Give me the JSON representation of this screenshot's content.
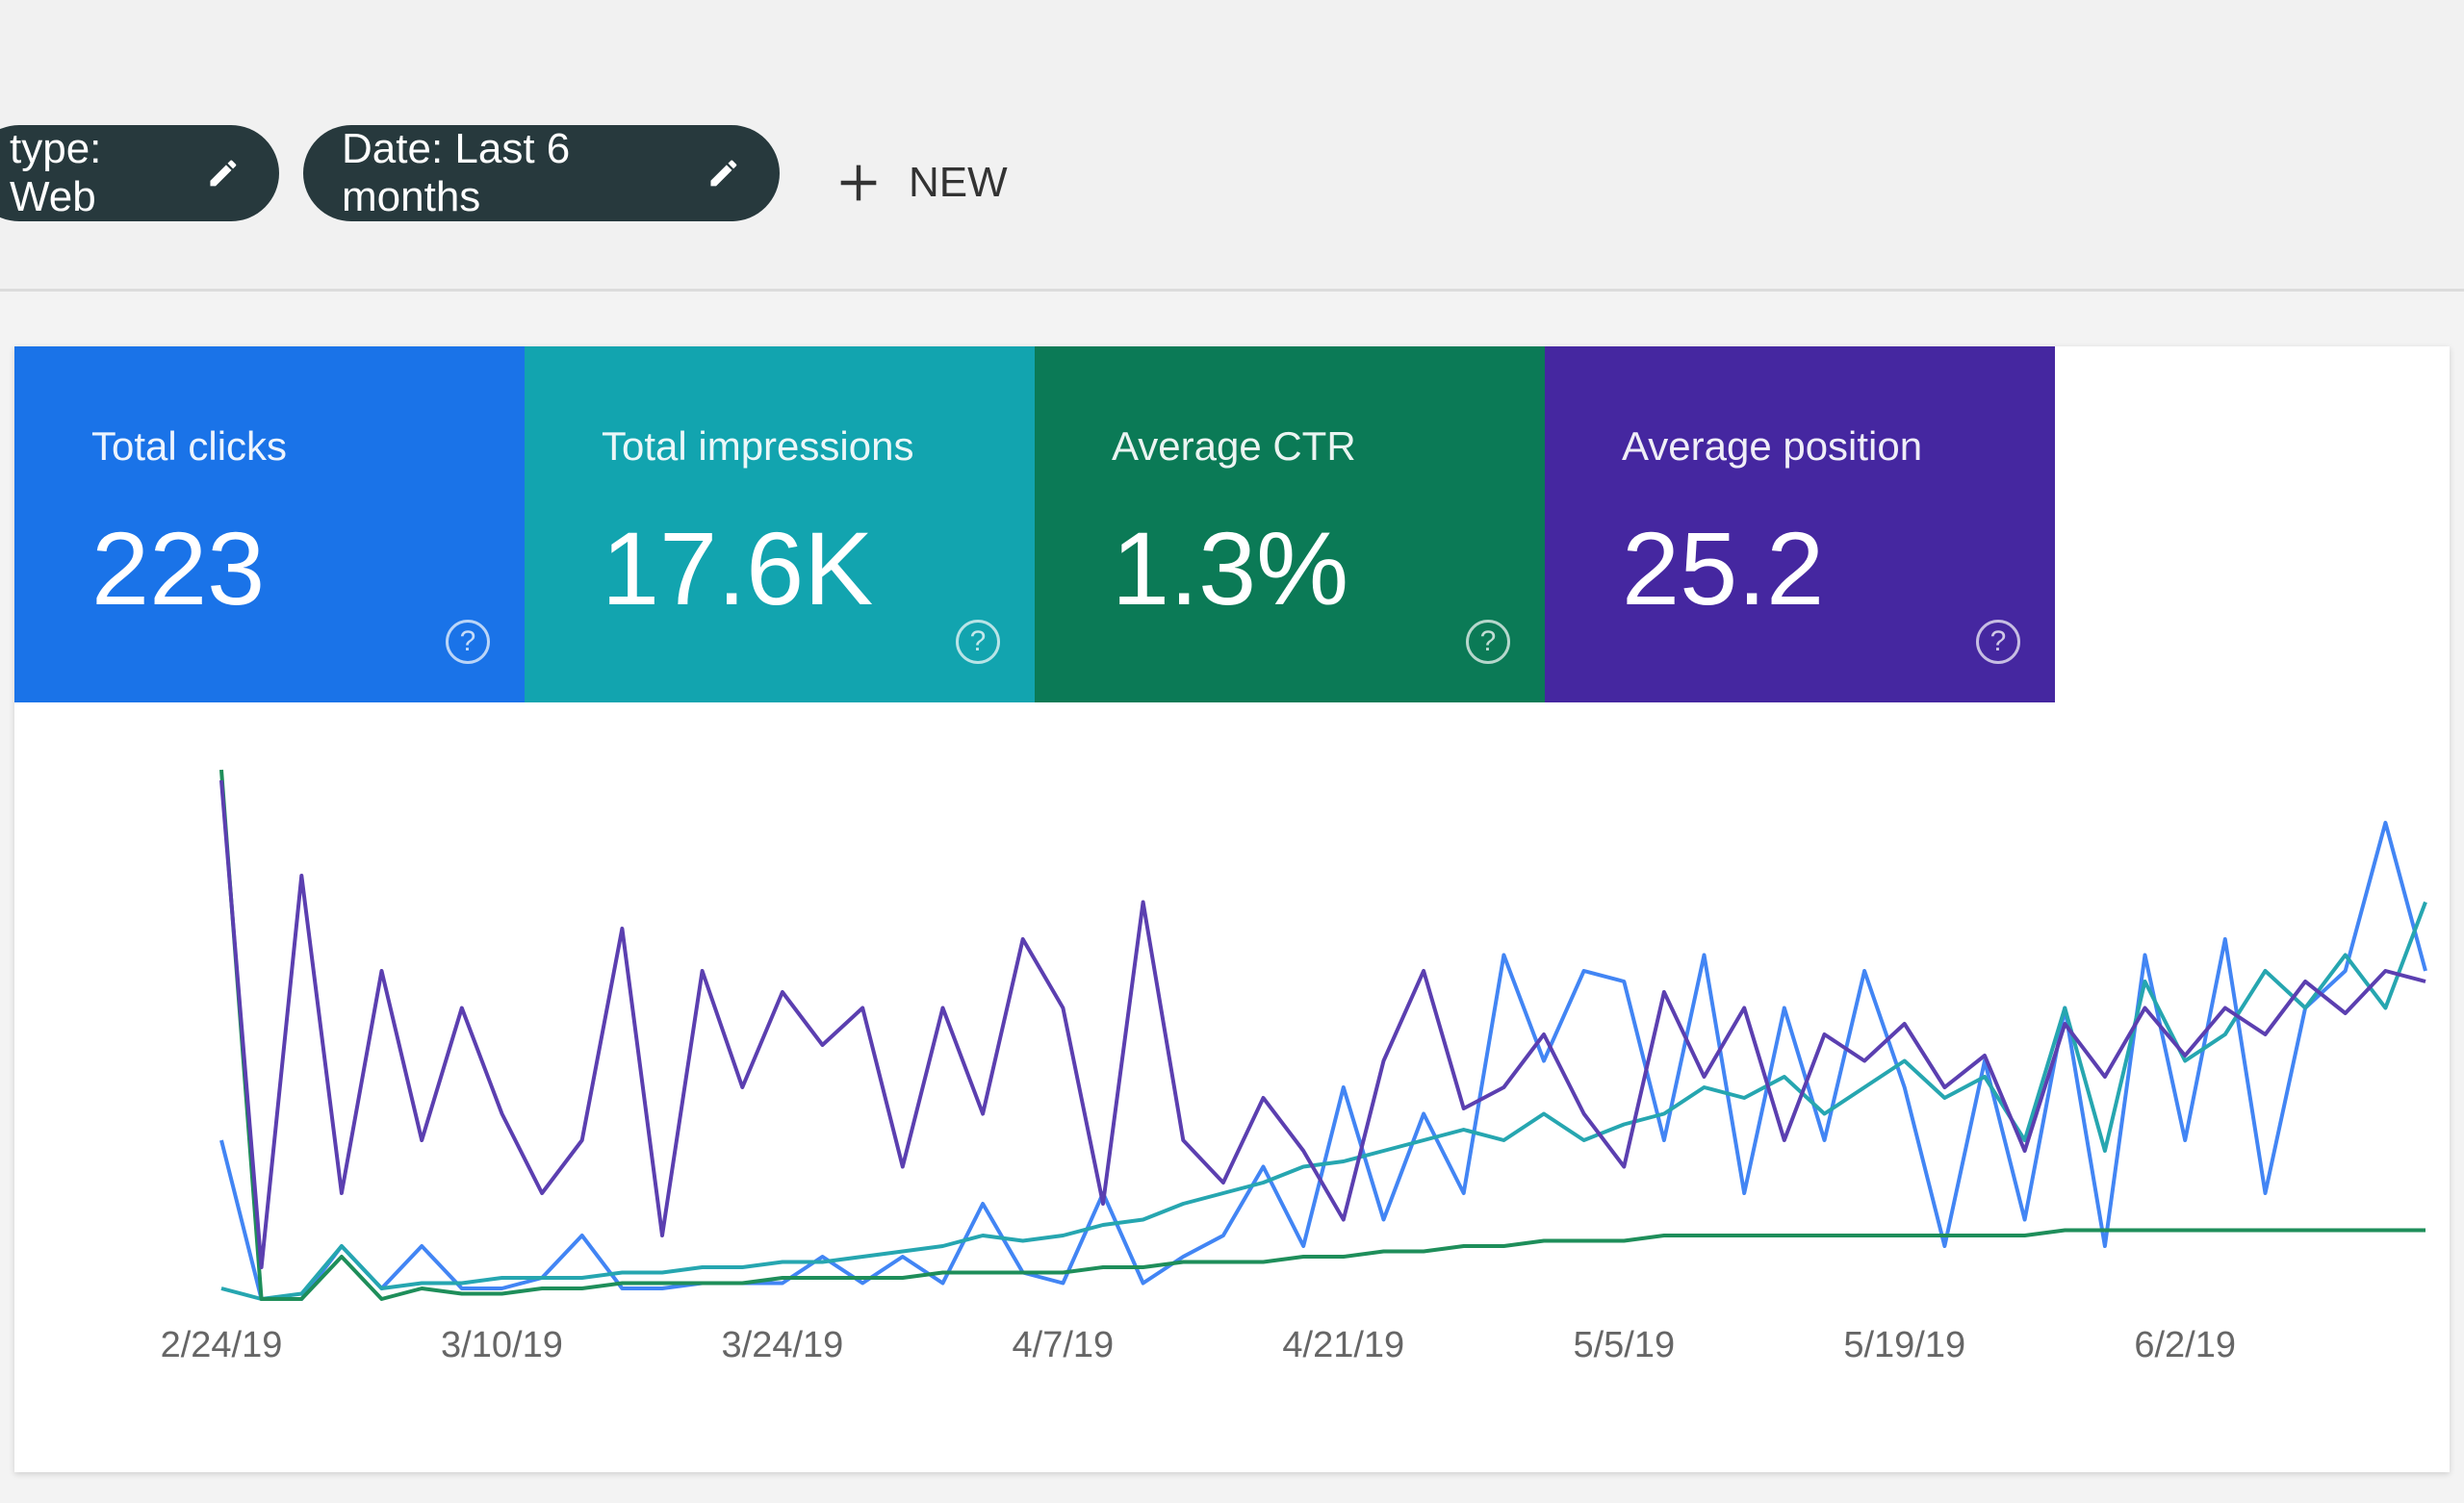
{
  "filters": [
    {
      "label": "type: Web"
    },
    {
      "label": "Date: Last 6 months"
    }
  ],
  "new_button": "NEW",
  "metrics": [
    {
      "label": "Total clicks",
      "value": "223",
      "help": "?",
      "color": "#1a73e8"
    },
    {
      "label": "Total impressions",
      "value": "17.6K",
      "help": "?",
      "color": "#12a4af"
    },
    {
      "label": "Average CTR",
      "value": "1.3%",
      "help": "?",
      "color": "#0b7a56"
    },
    {
      "label": "Average position",
      "value": "25.2",
      "help": "?",
      "color": "#4527a0"
    }
  ],
  "chart_data": {
    "type": "line",
    "categories": [
      "2/24/19",
      null,
      null,
      null,
      null,
      null,
      null,
      "3/10/19",
      null,
      null,
      null,
      null,
      null,
      null,
      "3/24/19",
      null,
      null,
      null,
      null,
      null,
      null,
      "4/7/19",
      null,
      null,
      null,
      null,
      null,
      null,
      "4/21/19",
      null,
      null,
      null,
      null,
      null,
      null,
      "5/5/19",
      null,
      null,
      null,
      null,
      null,
      null,
      "5/19/19",
      null,
      null,
      null,
      null,
      null,
      null,
      "6/2/19",
      null,
      null,
      null,
      null,
      null,
      null
    ],
    "ylim": [
      0,
      100
    ],
    "series": [
      {
        "name": "Total clicks",
        "color": "#4285f4",
        "values": [
          30,
          0,
          0,
          10,
          2,
          10,
          2,
          2,
          4,
          12,
          2,
          2,
          3,
          3,
          3,
          8,
          3,
          8,
          3,
          18,
          5,
          3,
          20,
          3,
          8,
          12,
          25,
          10,
          40,
          15,
          35,
          20,
          65,
          45,
          62,
          60,
          30,
          65,
          20,
          55,
          30,
          62,
          40,
          10,
          45,
          15,
          55,
          10,
          65,
          30,
          68,
          20,
          55,
          62,
          90,
          62
        ]
      },
      {
        "name": "Total impressions",
        "color": "#26a6b0",
        "values": [
          2,
          0,
          1,
          10,
          2,
          3,
          3,
          4,
          4,
          4,
          5,
          5,
          6,
          6,
          7,
          7,
          8,
          9,
          10,
          12,
          11,
          12,
          14,
          15,
          18,
          20,
          22,
          25,
          26,
          28,
          30,
          32,
          30,
          35,
          30,
          33,
          35,
          40,
          38,
          42,
          35,
          40,
          45,
          38,
          42,
          30,
          55,
          28,
          60,
          45,
          50,
          62,
          55,
          65,
          55,
          75
        ]
      },
      {
        "name": "Average CTR",
        "color": "#1e8e5a",
        "values": [
          100,
          0,
          0,
          8,
          0,
          2,
          1,
          1,
          2,
          2,
          3,
          3,
          3,
          3,
          4,
          4,
          4,
          4,
          5,
          5,
          5,
          5,
          6,
          6,
          7,
          7,
          7,
          8,
          8,
          9,
          9,
          10,
          10,
          11,
          11,
          11,
          12,
          12,
          12,
          12,
          12,
          12,
          12,
          12,
          12,
          12,
          13,
          13,
          13,
          13,
          13,
          13,
          13,
          13,
          13,
          13
        ]
      },
      {
        "name": "Average position",
        "color": "#5b3fb0",
        "values": [
          98,
          6,
          80,
          20,
          62,
          30,
          55,
          35,
          20,
          30,
          70,
          12,
          62,
          40,
          58,
          48,
          55,
          25,
          55,
          35,
          68,
          55,
          18,
          75,
          30,
          22,
          38,
          28,
          15,
          45,
          62,
          36,
          40,
          50,
          35,
          25,
          58,
          42,
          55,
          30,
          50,
          45,
          52,
          40,
          46,
          28,
          52,
          42,
          55,
          46,
          55,
          50,
          60,
          54,
          62,
          60
        ]
      }
    ]
  }
}
